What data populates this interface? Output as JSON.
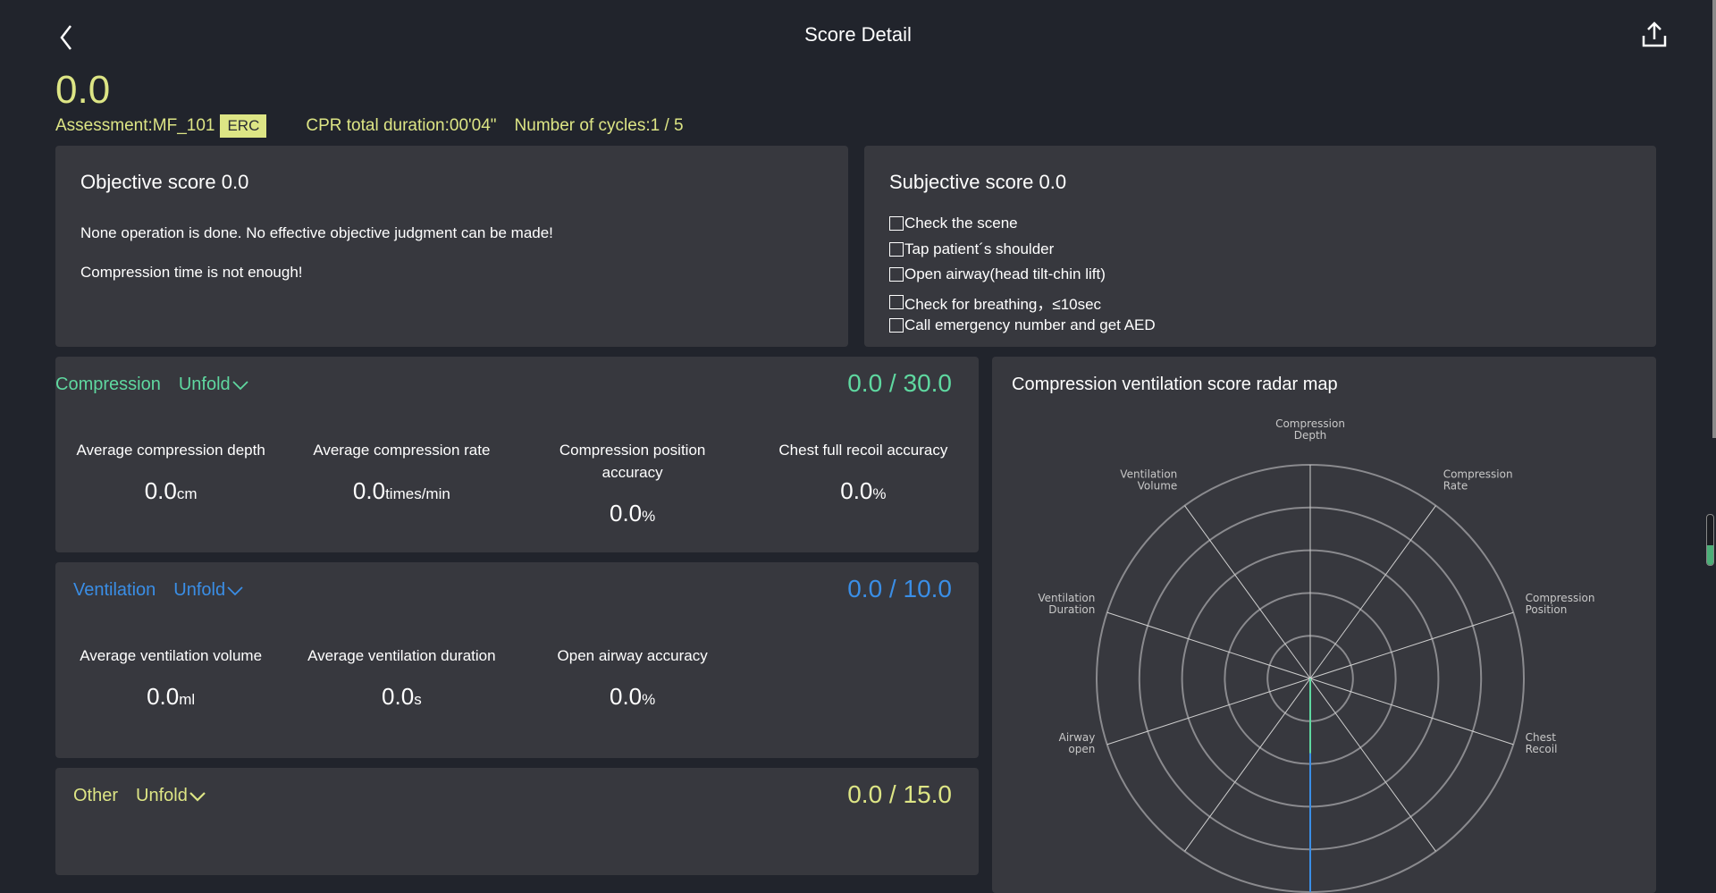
{
  "header": {
    "title": "Score Detail",
    "back_icon": "chevron-left-icon",
    "share_icon": "share-upload-icon"
  },
  "summary": {
    "score": "0.0",
    "assessment": "Assessment:MF_101",
    "badge": "ERC",
    "duration": "CPR total duration:00'04\"",
    "cycles": "Number of cycles:1 / 5"
  },
  "objective": {
    "title": "Objective score 0.0",
    "messages": [
      "None operation is done. No effective objective judgment can be made!",
      "Compression time is not enough!"
    ]
  },
  "subjective": {
    "title": "Subjective score 0.0",
    "items": [
      "Check the scene",
      "Tap patient´s shoulder",
      "Open airway(head tilt-chin lift)",
      "Check for breathing，≤10sec",
      "Call emergency number and get AED"
    ]
  },
  "compression": {
    "label": "Compression",
    "unfold": "Unfold",
    "score": "0.0",
    "max": "30.0",
    "color": "#5fd8a0",
    "stats": [
      {
        "label": "Average compression depth",
        "value": "0.0",
        "unit": "cm"
      },
      {
        "label": "Average compression rate",
        "value": "0.0",
        "unit": "times/min"
      },
      {
        "label": "Compression position accuracy",
        "value": "0.0",
        "unit": "%"
      },
      {
        "label": "Chest full recoil accuracy",
        "value": "0.0",
        "unit": "%"
      }
    ]
  },
  "ventilation": {
    "label": "Ventilation",
    "unfold": "Unfold",
    "score": "0.0",
    "max": "10.0",
    "color": "#3a8ee6",
    "stats": [
      {
        "label": "Average ventilation volume",
        "value": "0.0",
        "unit": "ml"
      },
      {
        "label": "Average ventilation duration",
        "value": "0.0",
        "unit": "s"
      },
      {
        "label": "Open airway accuracy",
        "value": "0.0",
        "unit": "%"
      }
    ]
  },
  "other": {
    "label": "Other",
    "unfold": "Unfold",
    "score": "0.0",
    "max": "15.0",
    "color": "#dde585"
  },
  "radar": {
    "title": "Compression ventilation score radar map",
    "axes": [
      [
        "Compression",
        "Depth"
      ],
      [
        "Compression",
        "Rate"
      ],
      [
        "Compression",
        "Position"
      ],
      [
        "Chest",
        "Recoil"
      ],
      null,
      null,
      null,
      [
        "Airway",
        "open"
      ],
      [
        "Ventilation",
        "Duration"
      ],
      [
        "Ventilation",
        "Volume"
      ]
    ],
    "values": [
      0,
      0,
      0,
      0,
      0,
      0,
      0,
      0,
      0,
      0
    ],
    "rings": 5
  },
  "colors": {
    "background": "#21242c",
    "card": "#37383e",
    "accent_yellow": "#dde585"
  },
  "scroll_indicator_level": 0.4
}
